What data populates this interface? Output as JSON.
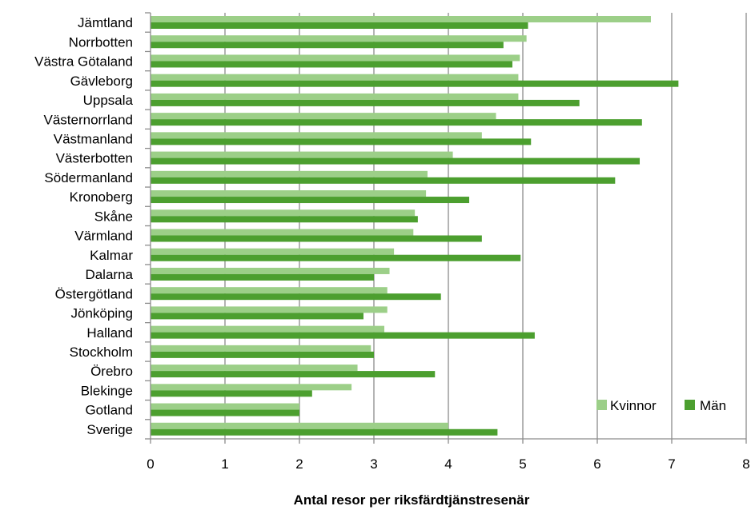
{
  "chart_data": {
    "type": "bar",
    "orientation": "horizontal",
    "categories": [
      "Jämtland",
      "Norrbotten",
      "Västra Götaland",
      "Gävleborg",
      "Uppsala",
      "Västernorrland",
      "Västmanland",
      "Västerbotten",
      "Södermanland",
      "Kronoberg",
      "Skåne",
      "Värmland",
      "Kalmar",
      "Dalarna",
      "Östergötland",
      "Jönköping",
      "Halland",
      "Stockholm",
      "Örebro",
      "Blekinge",
      "Gotland",
      "Sverige"
    ],
    "series": [
      {
        "name": "Kvinnor",
        "color": "#9ccf88",
        "values": [
          6.72,
          5.05,
          4.96,
          4.94,
          4.94,
          4.64,
          4.45,
          4.06,
          3.72,
          3.7,
          3.55,
          3.53,
          3.27,
          3.21,
          3.18,
          3.18,
          3.14,
          2.96,
          2.78,
          2.7,
          2.0,
          4.0
        ]
      },
      {
        "name": "Män",
        "color": "#4c9f2f",
        "values": [
          5.07,
          4.74,
          4.86,
          7.09,
          5.76,
          6.6,
          5.11,
          6.57,
          6.24,
          4.28,
          3.59,
          4.45,
          4.97,
          3.0,
          3.9,
          2.86,
          5.16,
          3.0,
          3.82,
          2.17,
          2.0,
          4.66
        ]
      }
    ],
    "xlabel": "Antal resor per riksfärdtjänstresenär",
    "xlim": [
      0,
      8
    ],
    "xticks": [
      "0",
      "1",
      "2",
      "3",
      "4",
      "5",
      "6",
      "7",
      "8"
    ],
    "grid": true,
    "legend": "bottom-right"
  }
}
